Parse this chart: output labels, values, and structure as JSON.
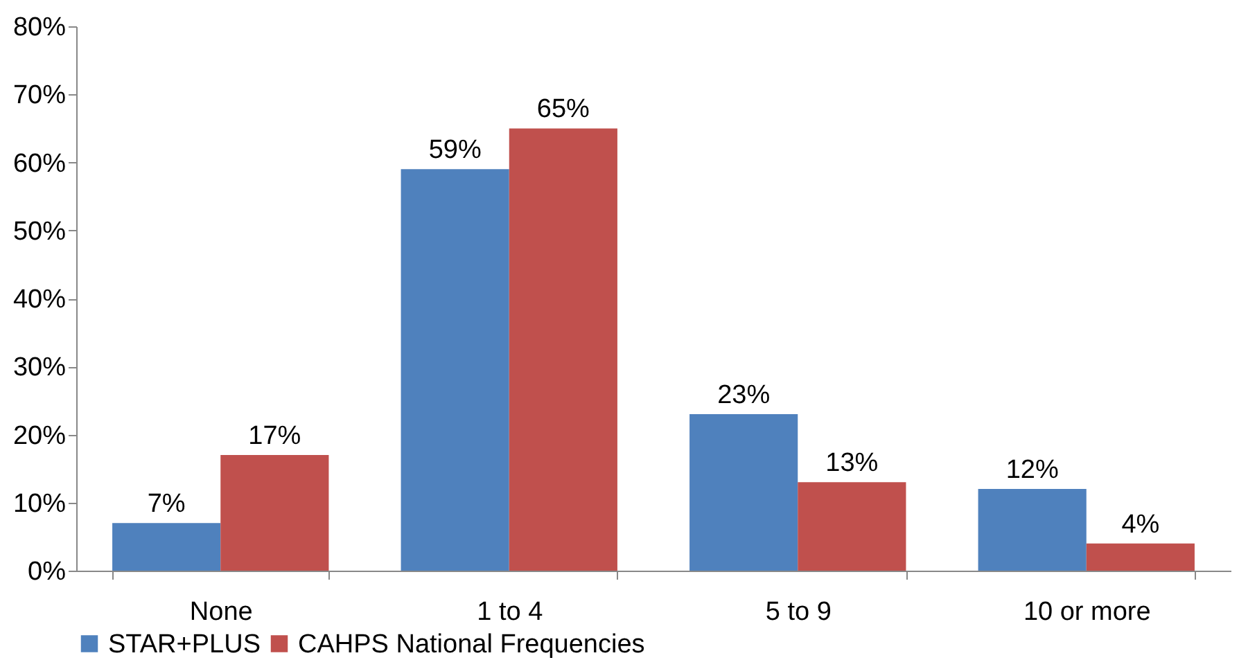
{
  "chart_data": {
    "type": "bar",
    "categories": [
      "None",
      "1 to 4",
      "5 to 9",
      "10 or more"
    ],
    "series": [
      {
        "name": "STAR+PLUS",
        "color": "#4f81bd",
        "values": [
          7,
          59,
          23,
          12
        ],
        "value_labels": [
          "7%",
          "59%",
          "23%",
          "12%"
        ]
      },
      {
        "name": "CAHPS National  Frequencies",
        "color": "#c0504d",
        "values": [
          17,
          65,
          13,
          4
        ],
        "value_labels": [
          "17%",
          "65%",
          "13%",
          "4%"
        ]
      }
    ],
    "ylim": [
      0,
      80
    ],
    "yticks": [
      {
        "value": 0,
        "label": "0%"
      },
      {
        "value": 10,
        "label": "10%"
      },
      {
        "value": 20,
        "label": "20%"
      },
      {
        "value": 30,
        "label": "30%"
      },
      {
        "value": 40,
        "label": "40%"
      },
      {
        "value": 50,
        "label": "50%"
      },
      {
        "value": 60,
        "label": "60%"
      },
      {
        "value": 70,
        "label": "70%"
      },
      {
        "value": 80,
        "label": "80%"
      }
    ],
    "grid": false,
    "legend": "bottom"
  }
}
